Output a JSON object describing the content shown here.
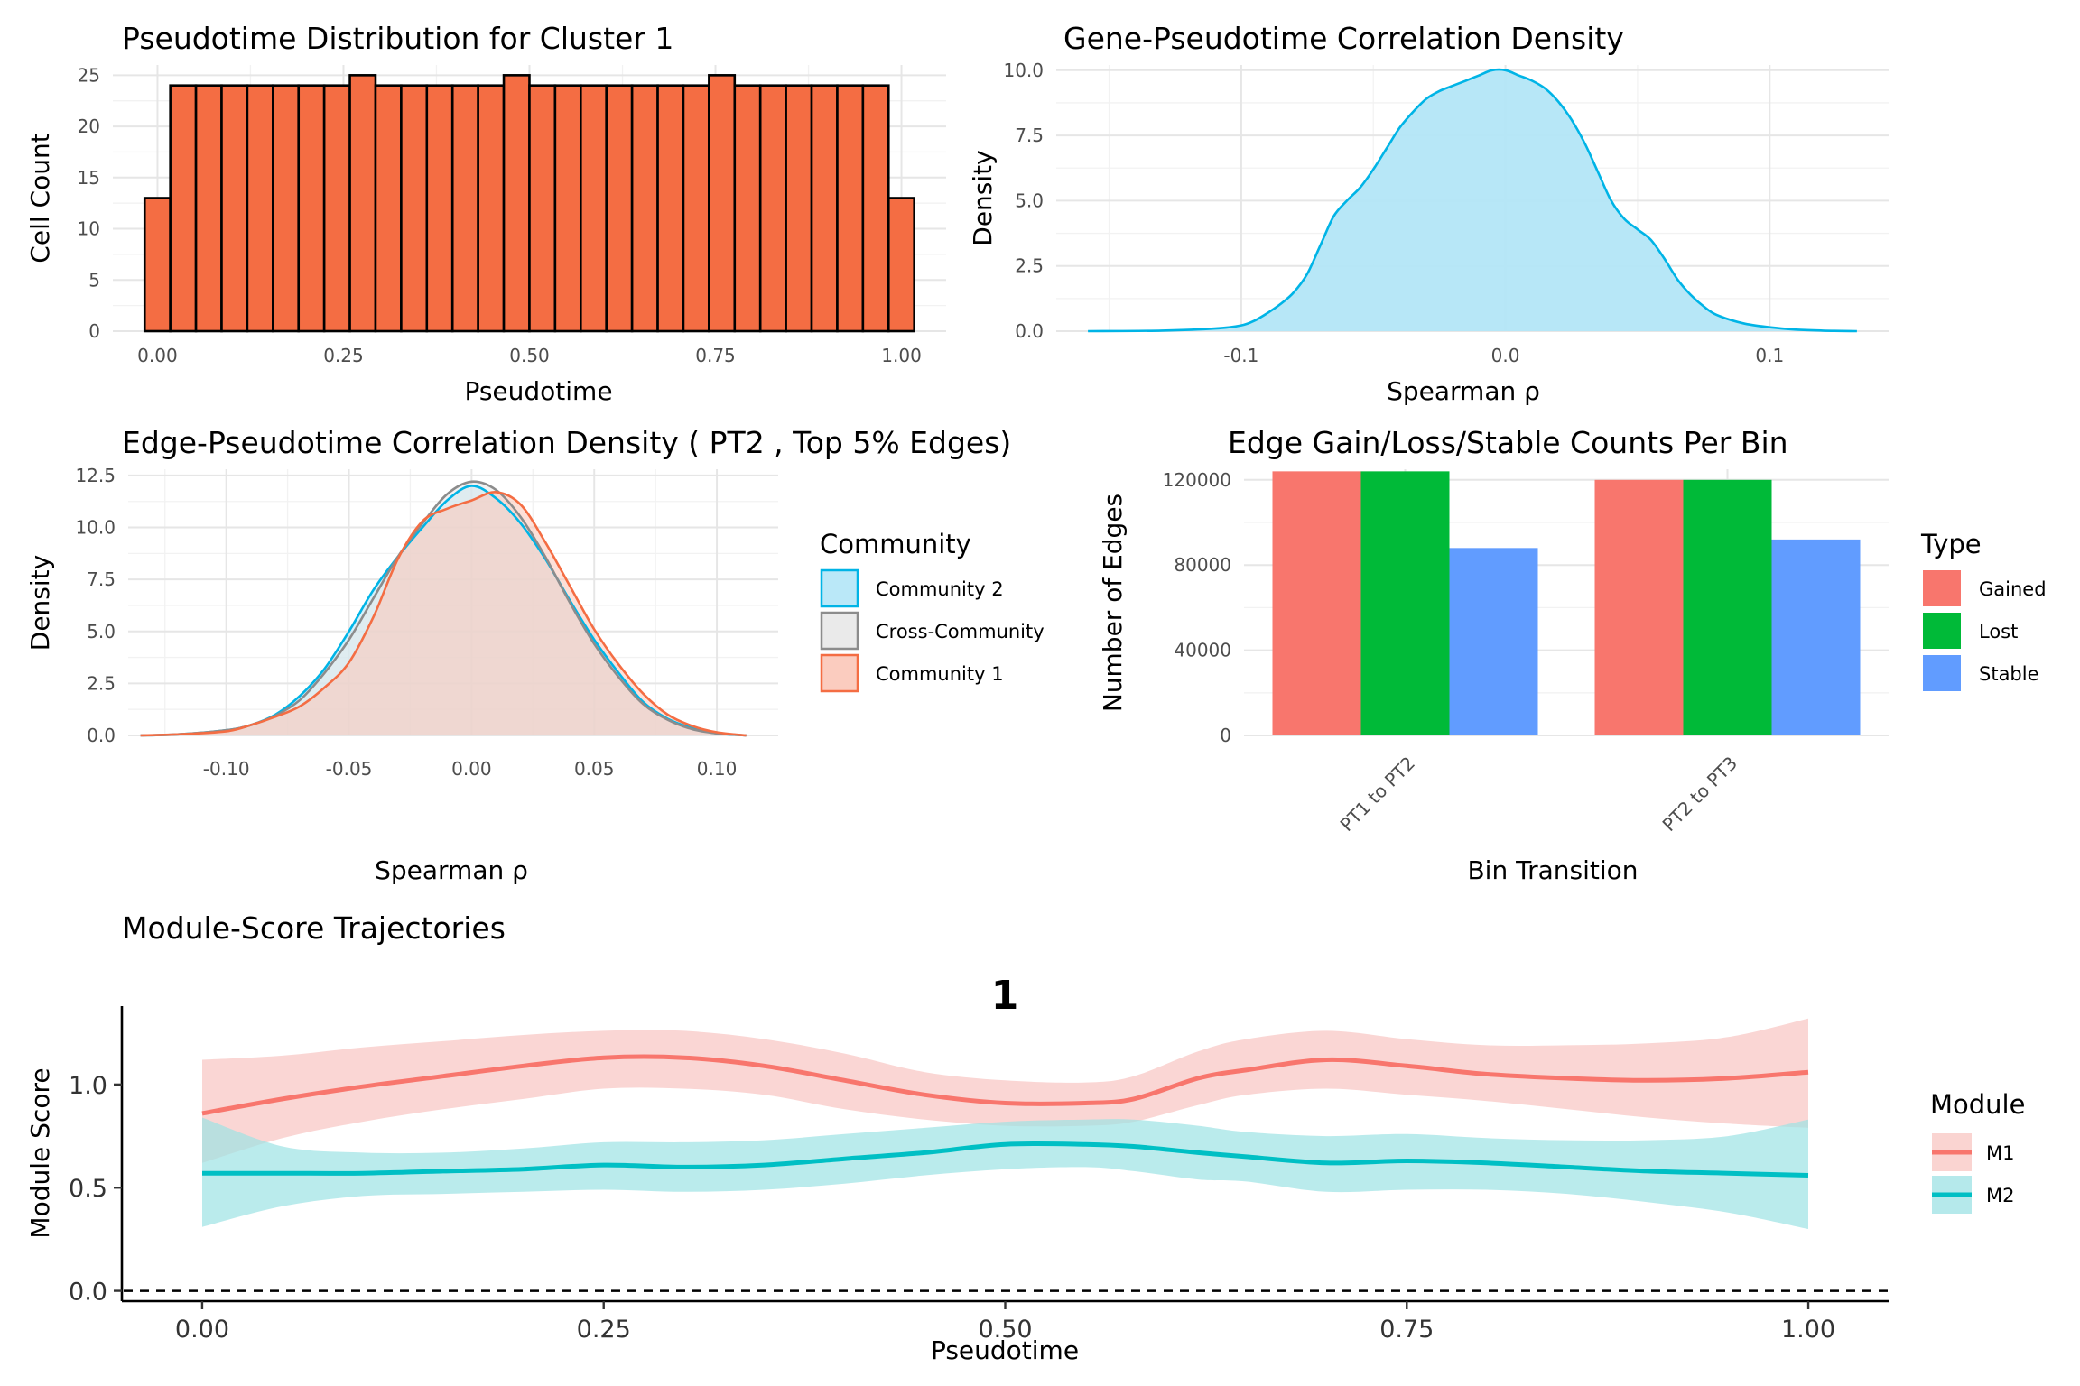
{
  "chart_data": [
    {
      "id": "hist",
      "type": "bar",
      "title": "Pseudotime Distribution for Cluster 1",
      "xlabel": "Pseudotime",
      "ylabel": "Cell Count",
      "xlim": [
        -0.06,
        1.06
      ],
      "ylim": [
        0,
        26
      ],
      "xticks": [
        0,
        0.25,
        0.5,
        0.75,
        1
      ],
      "xtick_labels": [
        "0.00",
        "0.25",
        "0.50",
        "0.75",
        "1.00"
      ],
      "yticks": [
        0,
        5,
        10,
        15,
        20,
        25
      ],
      "ytick_labels": [
        "0",
        "5",
        "10",
        "15",
        "20",
        "25"
      ],
      "bin_width": 0.03448,
      "bin_start": -0.01724,
      "values": [
        13,
        24,
        24,
        24,
        24,
        24,
        24,
        24,
        25,
        24,
        24,
        24,
        24,
        24,
        25,
        24,
        24,
        24,
        24,
        24,
        24,
        24,
        25,
        24,
        24,
        24,
        24,
        24,
        24,
        13
      ],
      "fill": "#F46D43",
      "stroke": "#000000"
    },
    {
      "id": "gene_density",
      "type": "area",
      "title": "Gene-Pseudotime Correlation Density",
      "xlabel": "Spearman ρ",
      "ylabel": "Density",
      "xlim": [
        -0.17,
        0.145
      ],
      "ylim": [
        0,
        10.2
      ],
      "xticks": [
        -0.1,
        0,
        0.1
      ],
      "xtick_labels": [
        "-0.1",
        "0.0",
        "0.1"
      ],
      "yticks": [
        0,
        2.5,
        5,
        7.5,
        10
      ],
      "ytick_labels": [
        "0.0",
        "2.5",
        "5.0",
        "7.5",
        "10.0"
      ],
      "line_color": "#00B4E6",
      "fill_color": "#B3E6F7",
      "x": [
        -0.158,
        -0.13,
        -0.11,
        -0.1,
        -0.095,
        -0.09,
        -0.085,
        -0.08,
        -0.075,
        -0.07,
        -0.065,
        -0.06,
        -0.055,
        -0.05,
        -0.045,
        -0.04,
        -0.035,
        -0.03,
        -0.025,
        -0.02,
        -0.015,
        -0.01,
        -0.005,
        0,
        0.005,
        0.01,
        0.015,
        0.02,
        0.025,
        0.03,
        0.035,
        0.04,
        0.045,
        0.05,
        0.055,
        0.06,
        0.065,
        0.07,
        0.075,
        0.08,
        0.09,
        0.1,
        0.11,
        0.12,
        0.133
      ],
      "y": [
        0,
        0.02,
        0.1,
        0.22,
        0.4,
        0.7,
        1.05,
        1.5,
        2.2,
        3.3,
        4.4,
        5.0,
        5.5,
        6.2,
        7.0,
        7.8,
        8.4,
        8.9,
        9.2,
        9.4,
        9.6,
        9.8,
        10.0,
        10.0,
        9.8,
        9.6,
        9.3,
        8.8,
        8.1,
        7.2,
        6.1,
        5.0,
        4.3,
        3.9,
        3.5,
        2.8,
        2.0,
        1.4,
        0.95,
        0.62,
        0.3,
        0.15,
        0.06,
        0.02,
        0
      ]
    },
    {
      "id": "edge_density",
      "type": "area",
      "title": "Edge-Pseudotime Correlation Density ( PT2 , Top 5% Edges)",
      "xlabel": "Spearman ρ",
      "ylabel": "Density",
      "xlim": [
        -0.14,
        0.125
      ],
      "ylim": [
        0,
        12.8
      ],
      "xticks": [
        -0.1,
        -0.05,
        0,
        0.05,
        0.1
      ],
      "xtick_labels": [
        "-0.10",
        "-0.05",
        "0.00",
        "0.05",
        "0.10"
      ],
      "yticks": [
        0,
        2.5,
        5,
        7.5,
        10,
        12.5
      ],
      "ytick_labels": [
        "0.0",
        "2.5",
        "5.0",
        "7.5",
        "10.0",
        "12.5"
      ],
      "legend": {
        "title": "Community",
        "position": "right",
        "items": [
          "Community 2",
          "Cross-Community",
          "Community 1"
        ]
      },
      "series": [
        {
          "name": "Community 2",
          "line_color": "#00B4E6",
          "fill_color": "#B3E6F7",
          "x": [
            -0.135,
            -0.12,
            -0.1,
            -0.09,
            -0.08,
            -0.07,
            -0.06,
            -0.05,
            -0.04,
            -0.03,
            -0.02,
            -0.01,
            0,
            0.01,
            0.02,
            0.03,
            0.04,
            0.05,
            0.06,
            0.07,
            0.08,
            0.09,
            0.1,
            0.112
          ],
          "y": [
            0,
            0.05,
            0.25,
            0.5,
            1.0,
            1.9,
            3.2,
            5.0,
            7.0,
            8.6,
            10.0,
            11.3,
            12.0,
            11.4,
            10.2,
            8.5,
            6.5,
            4.6,
            3.0,
            1.6,
            0.8,
            0.35,
            0.1,
            0
          ]
        },
        {
          "name": "Cross-Community",
          "line_color": "#8C8C8C",
          "fill_color": "#E8E8E8",
          "x": [
            -0.135,
            -0.12,
            -0.1,
            -0.09,
            -0.08,
            -0.07,
            -0.06,
            -0.05,
            -0.04,
            -0.03,
            -0.02,
            -0.01,
            0,
            0.01,
            0.02,
            0.03,
            0.04,
            0.05,
            0.06,
            0.07,
            0.08,
            0.09,
            0.1,
            0.112
          ],
          "y": [
            0,
            0.05,
            0.25,
            0.5,
            0.95,
            1.7,
            3.0,
            4.6,
            6.6,
            8.6,
            10.2,
            11.6,
            12.2,
            11.8,
            10.5,
            8.6,
            6.4,
            4.4,
            2.8,
            1.5,
            0.75,
            0.3,
            0.1,
            0
          ]
        },
        {
          "name": "Community 1",
          "line_color": "#F46D43",
          "fill_color": "#FBC6B8",
          "x": [
            -0.135,
            -0.12,
            -0.1,
            -0.09,
            -0.08,
            -0.07,
            -0.06,
            -0.05,
            -0.04,
            -0.03,
            -0.02,
            -0.01,
            0,
            0.01,
            0.02,
            0.03,
            0.04,
            0.05,
            0.06,
            0.07,
            0.08,
            0.09,
            0.1,
            0.112
          ],
          "y": [
            0,
            0.05,
            0.2,
            0.5,
            0.9,
            1.4,
            2.3,
            3.5,
            5.7,
            8.5,
            10.3,
            10.9,
            11.3,
            11.7,
            11.1,
            9.3,
            7.2,
            5.1,
            3.4,
            2.0,
            1.0,
            0.45,
            0.15,
            0
          ]
        }
      ]
    },
    {
      "id": "edge_counts",
      "type": "bar",
      "title": "Edge Gain/Loss/Stable Counts Per Bin",
      "xlabel": "Bin Transition",
      "ylabel": "Number of Edges",
      "ylim": [
        0,
        125000
      ],
      "yticks": [
        0,
        40000,
        80000,
        120000
      ],
      "ytick_labels": [
        "0",
        "40000",
        "80000",
        "120000"
      ],
      "categories": [
        "PT1 to PT2",
        "PT2 to PT3"
      ],
      "legend": {
        "title": "Type",
        "position": "right",
        "items": [
          "Gained",
          "Lost",
          "Stable"
        ]
      },
      "series": [
        {
          "name": "Gained",
          "color": "#F8766D",
          "values": [
            124000,
            120000
          ]
        },
        {
          "name": "Lost",
          "color": "#00BA38",
          "values": [
            124000,
            120000
          ]
        },
        {
          "name": "Stable",
          "color": "#619CFF",
          "values": [
            88000,
            92000
          ]
        }
      ]
    },
    {
      "id": "module_traj",
      "type": "line",
      "title": "Module-Score Trajectories",
      "facet_label": "1",
      "xlabel": "Pseudotime",
      "ylabel": "Module Score",
      "xlim": [
        -0.05,
        1.05
      ],
      "ylim": [
        -0.05,
        1.38
      ],
      "xticks": [
        0,
        0.25,
        0.5,
        0.75,
        1
      ],
      "xtick_labels": [
        "0.00",
        "0.25",
        "0.50",
        "0.75",
        "1.00"
      ],
      "yticks": [
        0,
        0.5,
        1
      ],
      "ytick_labels": [
        "0.0",
        "0.5",
        "1.0"
      ],
      "hline": 0,
      "legend": {
        "title": "Module",
        "position": "right",
        "items": [
          "M1",
          "M2"
        ]
      },
      "series": [
        {
          "name": "M1",
          "color": "#F8766D",
          "band_color": "#F8C5C2",
          "x": [
            0,
            0.05,
            0.1,
            0.15,
            0.2,
            0.25,
            0.3,
            0.35,
            0.4,
            0.45,
            0.5,
            0.55,
            0.58,
            0.62,
            0.65,
            0.7,
            0.75,
            0.8,
            0.85,
            0.9,
            0.95,
            1.0
          ],
          "y": [
            0.86,
            0.93,
            0.99,
            1.04,
            1.09,
            1.13,
            1.13,
            1.09,
            1.02,
            0.95,
            0.91,
            0.91,
            0.93,
            1.03,
            1.07,
            1.12,
            1.09,
            1.05,
            1.03,
            1.02,
            1.03,
            1.06
          ],
          "upper": [
            1.12,
            1.14,
            1.18,
            1.21,
            1.24,
            1.26,
            1.26,
            1.22,
            1.15,
            1.06,
            1.02,
            1.01,
            1.04,
            1.16,
            1.22,
            1.26,
            1.22,
            1.19,
            1.19,
            1.2,
            1.23,
            1.32
          ],
          "lower": [
            0.62,
            0.74,
            0.82,
            0.88,
            0.93,
            0.98,
            0.98,
            0.95,
            0.88,
            0.83,
            0.8,
            0.8,
            0.82,
            0.9,
            0.95,
            0.98,
            0.95,
            0.92,
            0.88,
            0.84,
            0.81,
            0.79
          ]
        },
        {
          "name": "M2",
          "color": "#00BFC4",
          "band_color": "#9CE2E4",
          "x": [
            0,
            0.05,
            0.1,
            0.15,
            0.2,
            0.25,
            0.3,
            0.35,
            0.4,
            0.45,
            0.5,
            0.55,
            0.58,
            0.62,
            0.65,
            0.7,
            0.75,
            0.8,
            0.85,
            0.9,
            0.95,
            1.0
          ],
          "y": [
            0.57,
            0.57,
            0.57,
            0.58,
            0.59,
            0.61,
            0.6,
            0.61,
            0.64,
            0.67,
            0.71,
            0.71,
            0.7,
            0.67,
            0.65,
            0.62,
            0.63,
            0.62,
            0.6,
            0.58,
            0.57,
            0.56
          ],
          "upper": [
            0.84,
            0.7,
            0.67,
            0.67,
            0.69,
            0.72,
            0.72,
            0.73,
            0.76,
            0.79,
            0.82,
            0.83,
            0.83,
            0.8,
            0.77,
            0.75,
            0.76,
            0.74,
            0.73,
            0.73,
            0.75,
            0.83
          ],
          "lower": [
            0.31,
            0.41,
            0.46,
            0.47,
            0.48,
            0.49,
            0.48,
            0.49,
            0.52,
            0.56,
            0.59,
            0.6,
            0.58,
            0.54,
            0.53,
            0.48,
            0.49,
            0.49,
            0.47,
            0.43,
            0.38,
            0.3
          ]
        }
      ]
    }
  ]
}
